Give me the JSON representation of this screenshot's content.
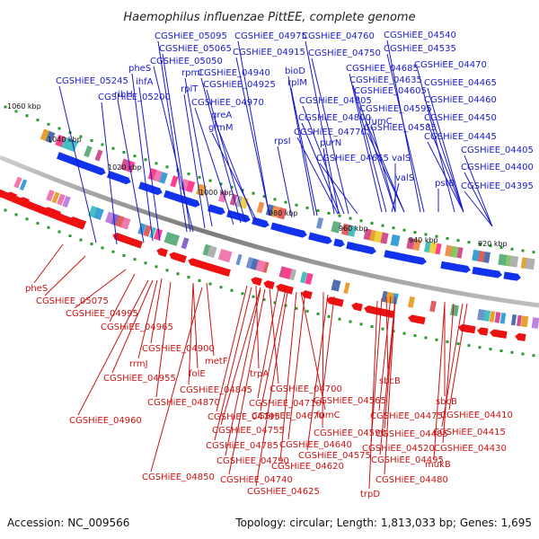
{
  "title": "Haemophilus influenzae PittEE, complete genome",
  "footer": {
    "accession": "Accession: NC_009566",
    "summary": "Topology: circular; Length: 1,813,033 bp; Genes: 1,695"
  },
  "ticks": [
    {
      "label": "1060 kbp"
    },
    {
      "label": "1040 kbp"
    },
    {
      "label": "1020 kbp"
    },
    {
      "label": "1000 kbp"
    },
    {
      "label": "980 kbp"
    },
    {
      "label": "960 kbp"
    },
    {
      "label": "940 kbp"
    },
    {
      "label": "920 kbp"
    }
  ],
  "upper_labels": [
    "CGSHiEE_05245",
    "ribH",
    "pheS",
    "ihfA",
    "CGSHiEE_05200",
    "CGSHiEE_05095",
    "CGSHiEE_05065",
    "CGSHiEE_05050",
    "rpmI",
    "rplT",
    "CGSHiEE_04975",
    "CGSHiEE_04915",
    "CGSHiEE_04940",
    "CGSHiEE_04925",
    "CGSHiEE_04970",
    "greA",
    "glmM",
    "bioD",
    "rplM",
    "CGSHiEE_04805",
    "CGSHiEE_04800",
    "rpsI",
    "CGSHiEE_04770",
    "purN",
    "CGSHiEE_04760",
    "CGSHiEE_04750",
    "CGSHiEE_04685",
    "CGSHiEE_04635",
    "CGSHiEE_04605",
    "CGSHiEE_04595",
    "fumC",
    "CGSHiEE_04585",
    "CGSHiEE_04655",
    "valS",
    "valS",
    "CGSHiEE_04540",
    "CGSHiEE_04535",
    "CGSHiEE_04470",
    "CGSHiEE_04465",
    "CGSHiEE_04460",
    "CGSHiEE_04450",
    "CGSHiEE_04445",
    "pstB",
    "CGSHiEE_04405",
    "CGSHiEE_04400",
    "CGSHiEE_04395"
  ],
  "lower_labels": [
    "pheS",
    "CGSHiEE_05075",
    "CGSHiEE_04995",
    "CGSHiEE_04965",
    "CGSHiEE_04900",
    "metF",
    "rrmJ",
    "folE",
    "CGSHiEE_04955",
    "CGSHiEE_04845",
    "CGSHiEE_04870",
    "CGSHiEE_04960",
    "trpA",
    "CGSHiEE_04700",
    "CGSHiEE_04795",
    "CGSHiEE_04710",
    "CGSHiEE_04755",
    "CGSHiEE_04670",
    "fumC",
    "CGSHiEE_04785",
    "CGSHiEE_04640",
    "CGSHiEE_04590",
    "CGSHiEE_04790",
    "CGSHiEE_04620",
    "CGSHiEE_04850",
    "CGSHiEE_04740",
    "CGSHiEE_04625",
    "CGSHiEE_04575",
    "CGSHiEE_04565",
    "sbcB",
    "CGSHiEE_04475",
    "CGSHiEE_04485",
    "CGSHiEE_04520",
    "CGSHiEE_04495",
    "CGSHiEE_04480",
    "trpD",
    "sbcB",
    "CGSHiEE_04410",
    "CGSHiEE_04415",
    "CGSHiEE_04430",
    "mukB"
  ],
  "colors": {
    "upper_label": "#1a1acc",
    "lower_label": "#cc1111",
    "forward_arrow": "#1133ee",
    "reverse_arrow": "#ee1111",
    "backbone": "#888888",
    "tick_mark": "#2a9a2a"
  }
}
